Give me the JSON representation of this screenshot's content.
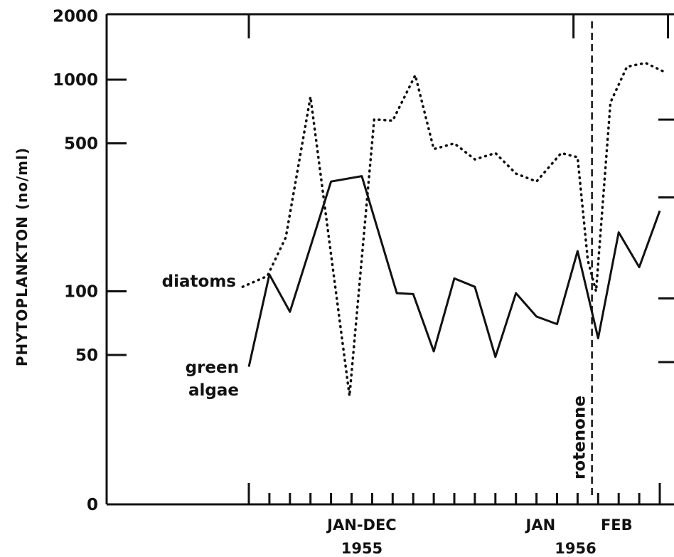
{
  "chart_data": {
    "type": "line",
    "ylabel": "PHYTOPLANKTON (no/ml)",
    "y_scale": "log",
    "y_ticks": [
      {
        "value": 2000,
        "label": "2000"
      },
      {
        "value": 1000,
        "label": "1000"
      },
      {
        "value": 500,
        "label": "500"
      },
      {
        "value": 100,
        "label": "100"
      },
      {
        "value": 50,
        "label": "50"
      },
      {
        "value": 0,
        "label": "0"
      }
    ],
    "x_labels": [
      {
        "id": "jan-dec",
        "text": "JAN-DEC",
        "month_index": 5.5
      },
      {
        "id": "jan",
        "text": "JAN",
        "month_index": 14.2
      },
      {
        "id": "feb",
        "text": "FEB",
        "month_index": 17.9
      }
    ],
    "year_labels": [
      {
        "id": "1955",
        "text": "1955",
        "month_index": 5.5
      },
      {
        "id": "1956",
        "text": "1956",
        "month_index": 15.9
      }
    ],
    "annotation": {
      "text": "rotenone",
      "month_index": 16.7
    },
    "series": [
      {
        "name": "diatoms",
        "style": "dotted",
        "color": "#111111",
        "points": [
          [
            -0.3,
            105
          ],
          [
            0.9,
            118
          ],
          [
            1.8,
            180
          ],
          [
            3.0,
            830
          ],
          [
            4.9,
            32
          ],
          [
            6.1,
            650
          ],
          [
            7.0,
            640
          ],
          [
            8.1,
            1050
          ],
          [
            9.0,
            470
          ],
          [
            10.0,
            500
          ],
          [
            11.0,
            420
          ],
          [
            12.0,
            450
          ],
          [
            13.0,
            360
          ],
          [
            14.0,
            330
          ],
          [
            15.2,
            450
          ],
          [
            16.0,
            430
          ],
          [
            16.5,
            140
          ],
          [
            16.9,
            100
          ],
          [
            17.6,
            780
          ],
          [
            18.4,
            1150
          ],
          [
            19.3,
            1200
          ],
          [
            20.3,
            1080
          ]
        ]
      },
      {
        "name": "green algae",
        "style": "solid",
        "color": "#111111",
        "points": [
          [
            0.0,
            44
          ],
          [
            1.0,
            120
          ],
          [
            2.0,
            80
          ],
          [
            4.0,
            330
          ],
          [
            5.5,
            350
          ],
          [
            7.2,
            98
          ],
          [
            8.0,
            97
          ],
          [
            9.0,
            52
          ],
          [
            10.0,
            115
          ],
          [
            11.0,
            105
          ],
          [
            12.0,
            49
          ],
          [
            13.0,
            98
          ],
          [
            14.0,
            76
          ],
          [
            15.0,
            70
          ],
          [
            16.0,
            155
          ],
          [
            17.0,
            60
          ],
          [
            18.0,
            190
          ],
          [
            19.0,
            130
          ],
          [
            20.0,
            240
          ]
        ]
      }
    ]
  }
}
